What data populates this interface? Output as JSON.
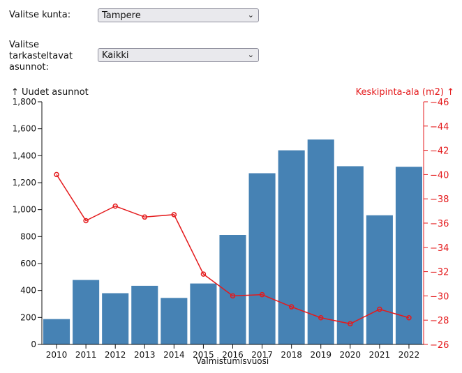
{
  "filters": {
    "municipality": {
      "label": "Valitse kunta:",
      "value": "Tampere"
    },
    "housing": {
      "label": "Valitse\ntarkasteltavat\nasunnot:",
      "value": "Kaikki"
    }
  },
  "colors": {
    "bars": "#4682b4",
    "line": "#e41a1c",
    "axis_left": "#111111",
    "axis_right": "#e41a1c"
  },
  "chart_data": {
    "type": "bar+line",
    "xlabel": "Valmistumisvuosi",
    "categories": [
      "2010",
      "2011",
      "2012",
      "2013",
      "2014",
      "2015",
      "2016",
      "2017",
      "2018",
      "2019",
      "2020",
      "2021",
      "2022"
    ],
    "series": [
      {
        "name": "↑ Uudet asunnot",
        "type": "bar",
        "axis": "left",
        "values": [
          188,
          478,
          380,
          435,
          345,
          452,
          812,
          1270,
          1440,
          1520,
          1322,
          958,
          1318
        ]
      },
      {
        "name": "Keskipinta-ala (m2) ↑",
        "type": "line",
        "axis": "right",
        "values": [
          40.0,
          36.2,
          37.4,
          36.5,
          36.7,
          31.8,
          30.0,
          30.1,
          29.1,
          28.2,
          27.7,
          28.9,
          28.2
        ]
      }
    ],
    "y_left": {
      "label": "↑ Uudet asunnot",
      "ylim": [
        0,
        1800
      ],
      "ticks": [
        0,
        200,
        400,
        600,
        800,
        1000,
        1200,
        1400,
        1600,
        1800
      ],
      "tick_labels": [
        "0",
        "200",
        "400",
        "600",
        "800",
        "1,000",
        "1,200",
        "1,400",
        "1,600",
        "1,800"
      ]
    },
    "y_right": {
      "label": "Keskipinta-ala (m2) ↑",
      "ylim": [
        26,
        46
      ],
      "ticks": [
        26,
        28,
        30,
        32,
        34,
        36,
        38,
        40,
        42,
        44,
        46
      ],
      "tick_labels": [
        "26",
        "28",
        "30",
        "32",
        "34",
        "36",
        "38",
        "40",
        "42",
        "44",
        "46"
      ]
    }
  }
}
